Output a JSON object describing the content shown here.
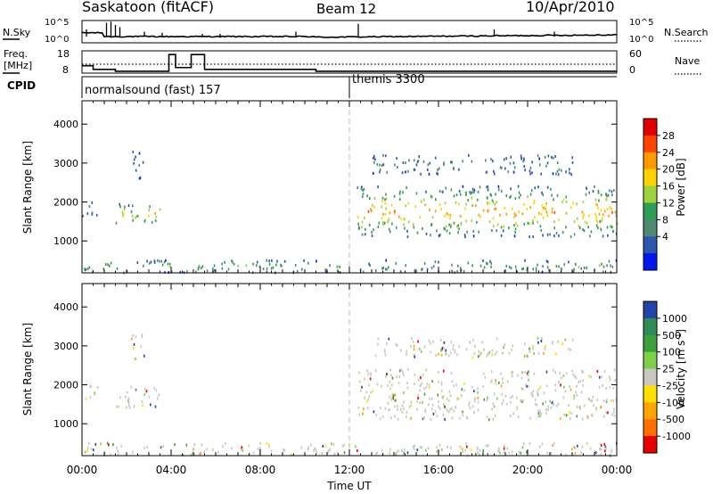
{
  "header": {
    "station": "Saskatoon (fitACF)",
    "beam": "Beam 12",
    "date": "10/Apr/2010"
  },
  "noise_panel": {
    "left_label": "N.Sky",
    "right_label": "N.Search",
    "left_ticks": [
      "10^5",
      "10^0"
    ],
    "right_ticks": [
      "10^5",
      "10^0"
    ]
  },
  "freq_panel": {
    "left_label_line1": "Freq.",
    "left_label_line2": "[MHz]",
    "right_label": "Nave",
    "left_ticks": [
      "18",
      "8"
    ],
    "right_ticks": [
      "60",
      "0"
    ],
    "freq_mhz_steps": [
      {
        "t": 0.0,
        "v": 11
      },
      {
        "t": 0.5,
        "v": 9
      },
      {
        "t": 1.5,
        "v": 8
      },
      {
        "t": 3.9,
        "v": 17
      },
      {
        "t": 4.2,
        "v": 10
      },
      {
        "t": 4.9,
        "v": 17
      },
      {
        "t": 5.5,
        "v": 9
      },
      {
        "t": 10.5,
        "v": 8
      },
      {
        "t": 24.0,
        "v": 8
      }
    ],
    "nave_level": 24
  },
  "cpid": {
    "label": "CPID",
    "segments": [
      {
        "start": 0.0,
        "text": "normalsound (fast) 157"
      },
      {
        "start": 12.0,
        "text": "themis 3300"
      }
    ]
  },
  "x_axis": {
    "label": "Time UT",
    "ticks": [
      "00:00",
      "04:00",
      "08:00",
      "12:00",
      "16:00",
      "20:00",
      "00:00"
    ],
    "tick_hours": [
      0,
      4,
      8,
      12,
      16,
      20,
      24
    ]
  },
  "chart_data": [
    {
      "type": "heatmap",
      "title": "",
      "xlabel": "Time UT",
      "ylabel": "Slant Range [km]",
      "xlim": [
        0,
        24
      ],
      "ylim": [
        180,
        4600
      ],
      "y_ticks": [
        1000,
        2000,
        3000,
        4000
      ],
      "colorbar": {
        "label": "Power [dB]",
        "tick_labels": [
          "28",
          "24",
          "20",
          "16",
          "12",
          "8",
          "4"
        ],
        "colors": [
          "#e00000",
          "#ff4400",
          "#ff9900",
          "#ffd200",
          "#9bd43c",
          "#2e9e57",
          "#4f8a70",
          "#2a56b0",
          "#0018ee"
        ]
      },
      "echo_regions": [
        {
          "t0": 0.0,
          "t1": 0.7,
          "r0": 1600,
          "r1": 2000,
          "level": 4
        },
        {
          "t0": 1.5,
          "t1": 3.5,
          "r0": 1400,
          "r1": 1950,
          "level": 16
        },
        {
          "t0": 2.2,
          "t1": 2.8,
          "r0": 2600,
          "r1": 3300,
          "level": 4
        },
        {
          "t0": 12.3,
          "t1": 24.0,
          "r0": 1100,
          "r1": 2400,
          "level": 20
        },
        {
          "t0": 13.0,
          "t1": 22.0,
          "r0": 2700,
          "r1": 3200,
          "level": 4
        },
        {
          "t0": 0.0,
          "t1": 24.0,
          "r0": 180,
          "r1": 500,
          "level": 8
        }
      ]
    },
    {
      "type": "heatmap",
      "title": "",
      "xlabel": "Time UT",
      "ylabel": "Slant Range [km]",
      "xlim": [
        0,
        24
      ],
      "ylim": [
        180,
        4600
      ],
      "y_ticks": [
        1000,
        2000,
        3000,
        4000
      ],
      "colorbar": {
        "label": "Velocity [m s^-1]",
        "tick_labels": [
          "1000",
          "500",
          "100",
          "25",
          "-25",
          "-100",
          "-500",
          "-1000"
        ],
        "colors": [
          "#2244aa",
          "#2e8b57",
          "#3ca03c",
          "#7ed04a",
          "#c8c8c0",
          "#ffe000",
          "#ffa400",
          "#ff7000",
          "#e80000"
        ]
      },
      "echo_regions": [
        {
          "t0": 0.0,
          "t1": 0.7,
          "r0": 1600,
          "r1": 2000,
          "level": 4
        },
        {
          "t0": 1.5,
          "t1": 3.5,
          "r0": 1400,
          "r1": 1950,
          "level": 4
        },
        {
          "t0": 2.2,
          "t1": 2.8,
          "r0": 2600,
          "r1": 3300,
          "level": 4
        },
        {
          "t0": 12.3,
          "t1": 24.0,
          "r0": 1100,
          "r1": 2400,
          "level": 4
        },
        {
          "t0": 13.0,
          "t1": 22.0,
          "r0": 2700,
          "r1": 3200,
          "level": 4
        },
        {
          "t0": 0.0,
          "t1": 24.0,
          "r0": 180,
          "r1": 500,
          "level": 2
        }
      ]
    }
  ]
}
